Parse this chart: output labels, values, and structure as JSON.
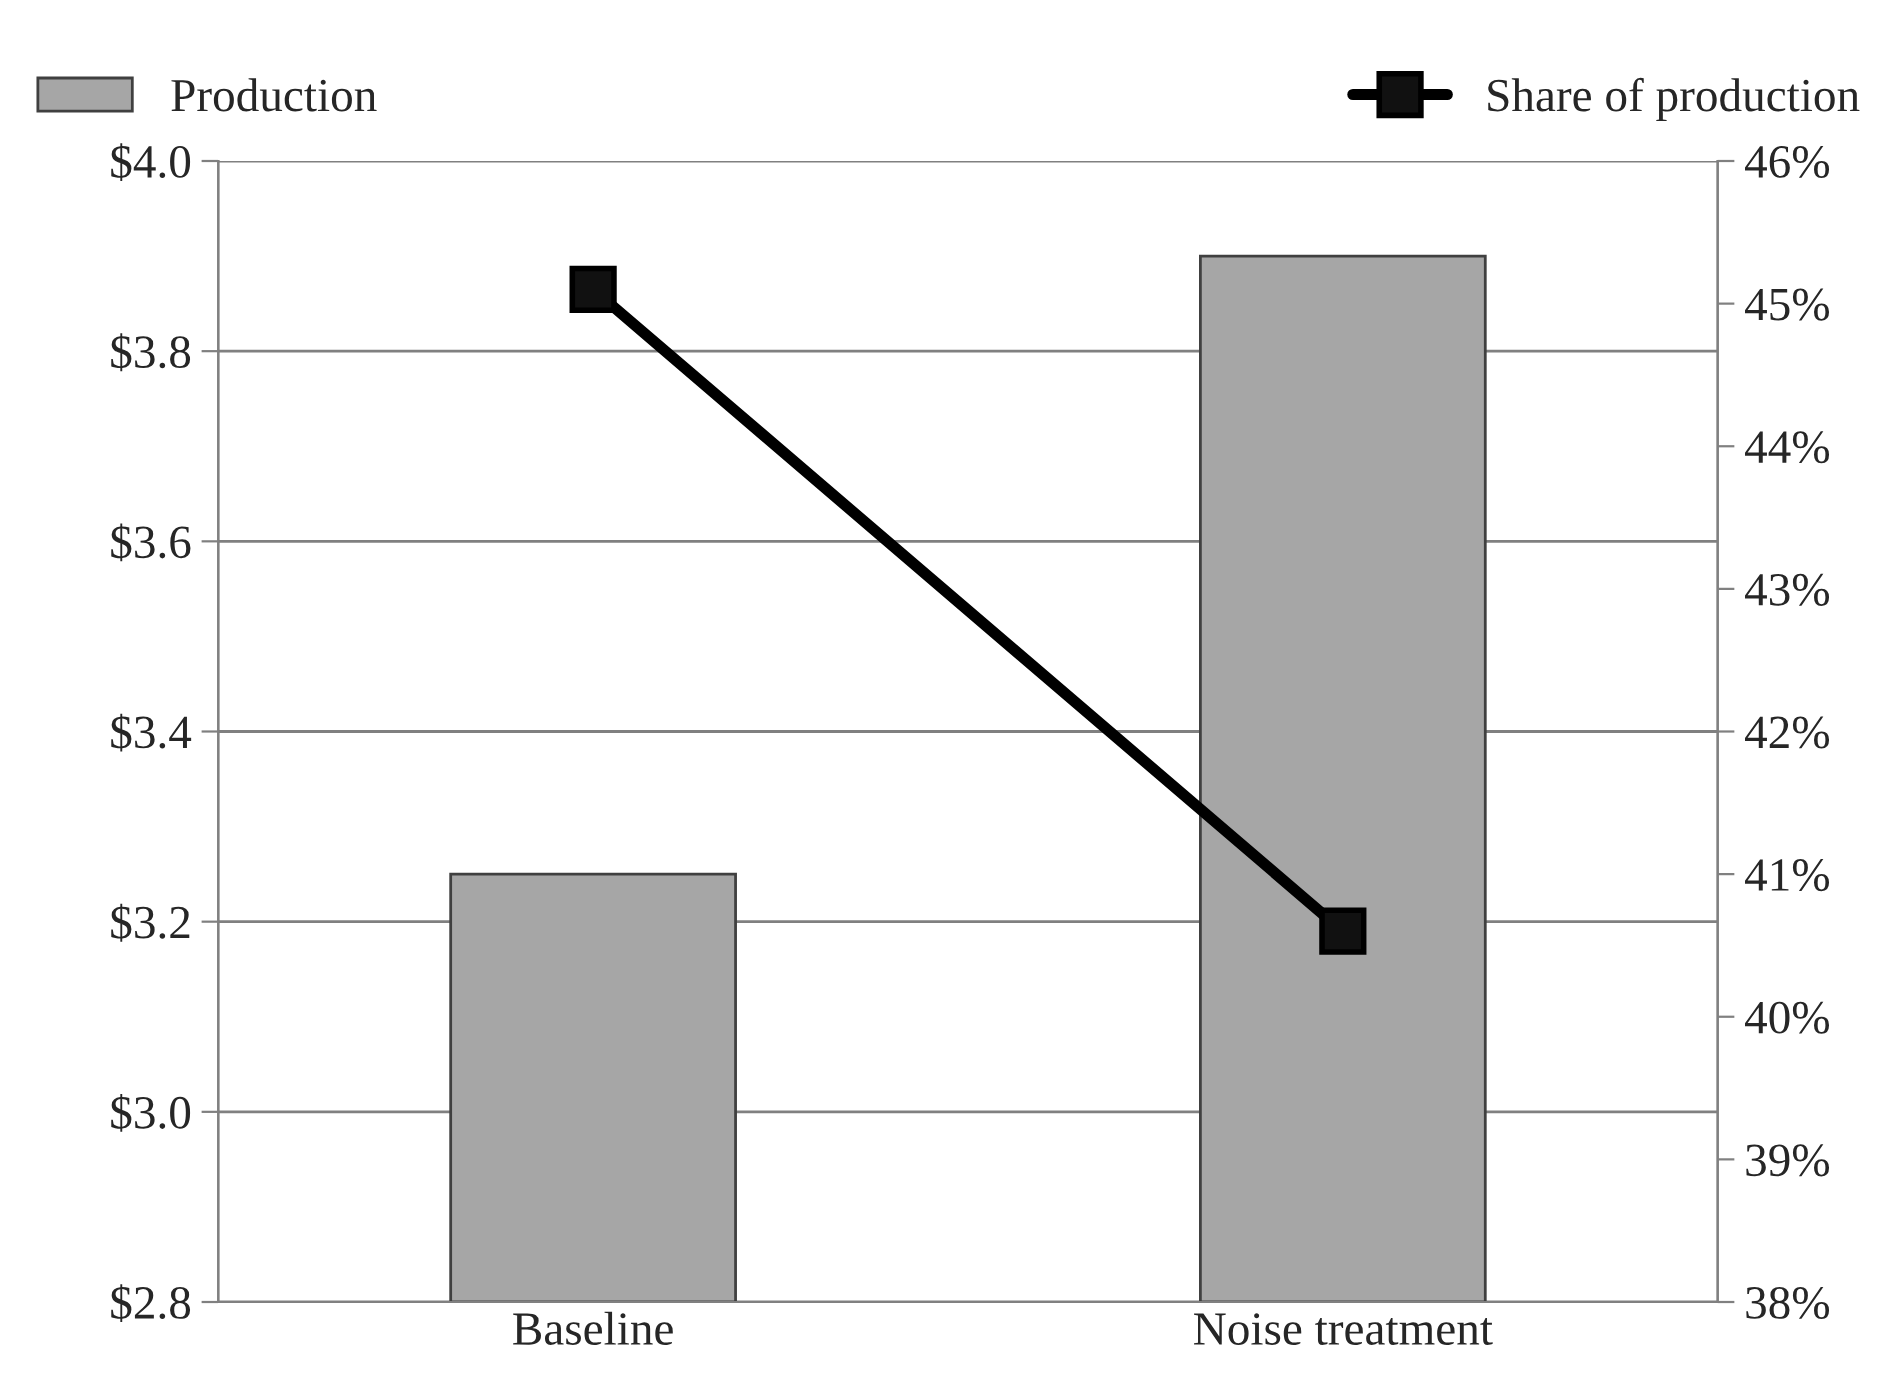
{
  "chart_data": {
    "type": "bar",
    "categories": [
      "Baseline",
      "Noise treatment"
    ],
    "series": [
      {
        "name": "Production",
        "color": "#a6a6a6",
        "values": [
          3.25,
          3.9
        ]
      },
      {
        "name": "Share of production",
        "type": "line",
        "axis": "y2",
        "color": "#000000",
        "values": [
          45.1,
          40.6
        ],
        "marker": "square",
        "line_style": "solid"
      }
    ],
    "ylim": [
      2.8,
      4.0
    ],
    "yticks": [
      {
        "value": 2.8,
        "label": "$2.8"
      },
      {
        "value": 3.0,
        "label": "$3.0"
      },
      {
        "value": 3.2,
        "label": "$3.2"
      },
      {
        "value": 3.4,
        "label": "$3.4"
      },
      {
        "value": 3.6,
        "label": "$3.6"
      },
      {
        "value": 3.8,
        "label": "$3.8"
      },
      {
        "value": 4.0,
        "label": "$4.0"
      }
    ],
    "y2lim": [
      38,
      46
    ],
    "y2ticks": [
      {
        "value": 38,
        "label": "38%"
      },
      {
        "value": 39,
        "label": "39%"
      },
      {
        "value": 40,
        "label": "40%"
      },
      {
        "value": 41,
        "label": "41%"
      },
      {
        "value": 42,
        "label": "42%"
      },
      {
        "value": 43,
        "label": "43%"
      },
      {
        "value": 44,
        "label": "44%"
      },
      {
        "value": 45,
        "label": "45%"
      },
      {
        "value": 46,
        "label": "46%"
      }
    ],
    "grid": "y",
    "legend": "top"
  }
}
